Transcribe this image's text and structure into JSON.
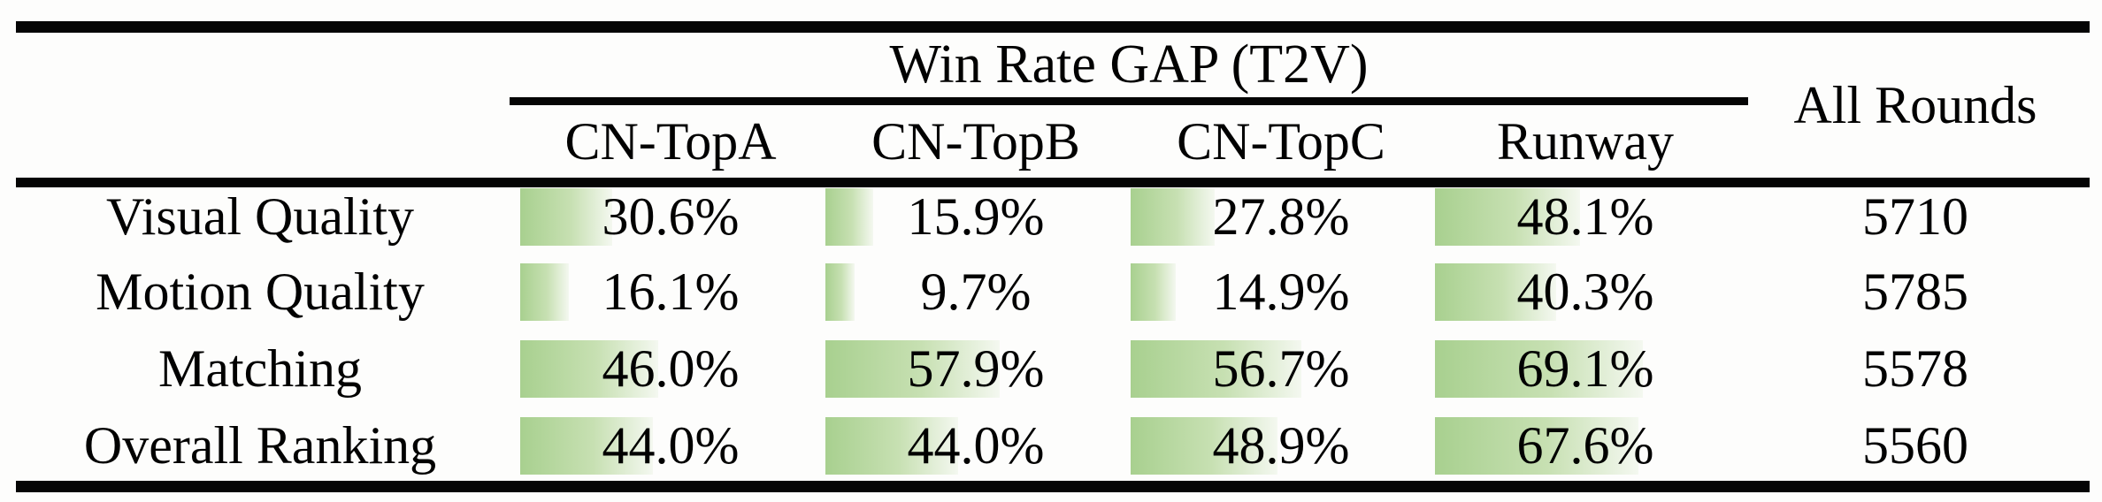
{
  "table": {
    "title": "Win Rate GAP (T2V)",
    "all_rounds_header": "All Rounds",
    "columns": [
      "CN-TopA",
      "CN-TopB",
      "CN-TopC",
      "Runway"
    ],
    "rows": [
      {
        "label": "Visual Quality",
        "cells": [
          {
            "display": "30.6%",
            "value": 30.6
          },
          {
            "display": "15.9%",
            "value": 15.9
          },
          {
            "display": "27.8%",
            "value": 27.8
          },
          {
            "display": "48.1%",
            "value": 48.1
          }
        ],
        "all_rounds": "5710"
      },
      {
        "label": "Motion Quality",
        "cells": [
          {
            "display": "16.1%",
            "value": 16.1
          },
          {
            "display": "9.7%",
            "value": 9.7
          },
          {
            "display": "14.9%",
            "value": 14.9
          },
          {
            "display": "40.3%",
            "value": 40.3
          }
        ],
        "all_rounds": "5785"
      },
      {
        "label": "Matching",
        "cells": [
          {
            "display": "46.0%",
            "value": 46.0
          },
          {
            "display": "57.9%",
            "value": 57.9
          },
          {
            "display": "56.7%",
            "value": 56.7
          },
          {
            "display": "69.1%",
            "value": 69.1
          }
        ],
        "all_rounds": "5578"
      },
      {
        "label": "Overall Ranking",
        "cells": [
          {
            "display": "44.0%",
            "value": 44.0
          },
          {
            "display": "44.0%",
            "value": 44.0
          },
          {
            "display": "48.9%",
            "value": 48.9
          },
          {
            "display": "67.6%",
            "value": 67.6
          }
        ],
        "all_rounds": "5560"
      }
    ],
    "bar_color_start": "#a8d08f",
    "bar_color_end": "#f4f8f0",
    "rule_color": "#050505"
  },
  "chart_data": {
    "type": "table",
    "title": "Win Rate GAP (T2V)",
    "categories": [
      "Visual Quality",
      "Motion Quality",
      "Matching",
      "Overall Ranking"
    ],
    "series": [
      {
        "name": "CN-TopA",
        "values": [
          30.6,
          16.1,
          46.0,
          44.0
        ],
        "unit": "%"
      },
      {
        "name": "CN-TopB",
        "values": [
          15.9,
          9.7,
          57.9,
          44.0
        ],
        "unit": "%"
      },
      {
        "name": "CN-TopC",
        "values": [
          27.8,
          14.9,
          56.7,
          48.9
        ],
        "unit": "%"
      },
      {
        "name": "Runway",
        "values": [
          48.1,
          40.3,
          69.1,
          67.6
        ],
        "unit": "%"
      },
      {
        "name": "All Rounds",
        "values": [
          5710,
          5785,
          5578,
          5560
        ],
        "unit": "count"
      }
    ],
    "notes": "In-cell gradient data bars, bar length proportional to percentage (0-100%)"
  }
}
